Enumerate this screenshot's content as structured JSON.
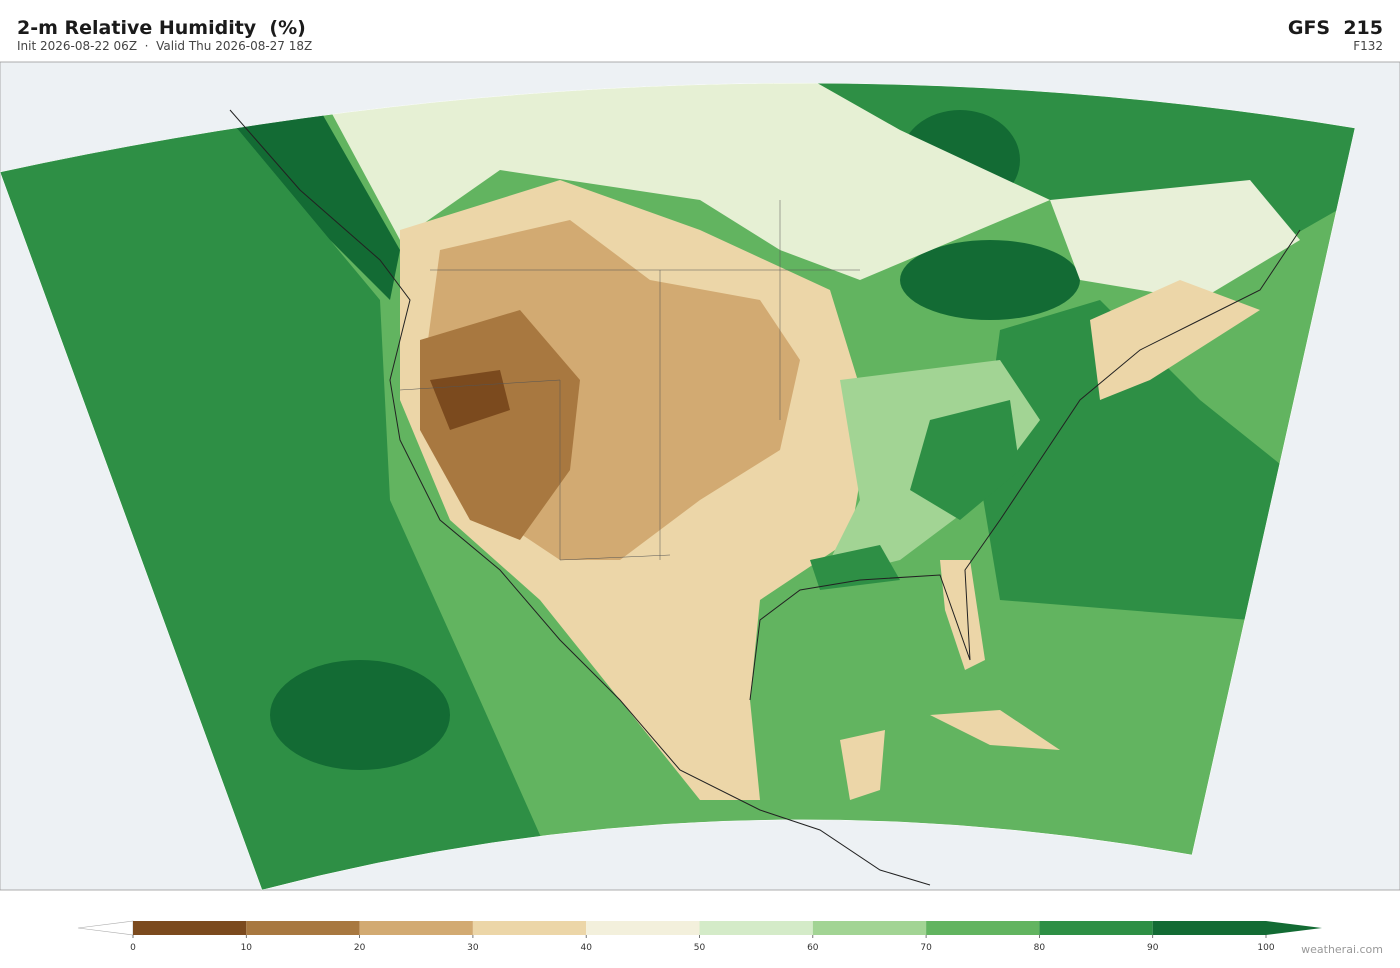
{
  "header": {
    "title": "2-m Relative Humidity  (%)",
    "subtitle": "Init 2026-08-22 06Z  ·  Valid Thu 2026-08-27 18Z",
    "model": "GFS  215",
    "forecast_hour": "F132"
  },
  "colorbar": {
    "lim": [
      0,
      100
    ],
    "ticks": [
      0,
      10,
      20,
      30,
      40,
      50,
      60,
      70,
      80,
      90,
      100
    ],
    "colors": [
      "#7b4a1e",
      "#a87840",
      "#d2aa72",
      "#ecd6a8",
      "#f3f0dc",
      "#d4ebc8",
      "#a2d494",
      "#62b460",
      "#2e8f45",
      "#136b34"
    ],
    "under_color": "#ffffff",
    "over_color": "#136b34"
  },
  "footer": {
    "watermark": "weatherai.com"
  }
}
